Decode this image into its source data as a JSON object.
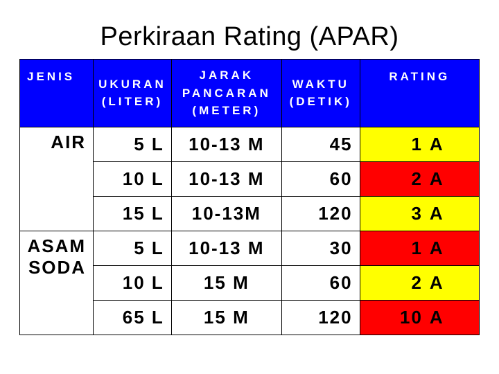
{
  "title": "Perkiraan Rating (APAR)",
  "headers": {
    "jenis": "JENIS",
    "ukuran": "UKURAN (LITER)",
    "jarak": "JARAK PANCARAN (METER)",
    "waktu": "WAKTU (DETIK)",
    "rating": "RATING"
  },
  "rows": [
    {
      "jenis": "AIR",
      "jenis_rowspan": 3,
      "ukuran": "5 L",
      "jarak": "10-13 M",
      "waktu": "45",
      "rating_num": "1",
      "rating_let": "A",
      "rating_bg": "bg-yellow"
    },
    {
      "jenis": "",
      "jenis_rowspan": 0,
      "ukuran": "10 L",
      "jarak": "10-13 M",
      "waktu": "60",
      "rating_num": "2",
      "rating_let": "A",
      "rating_bg": "bg-red"
    },
    {
      "jenis": "",
      "jenis_rowspan": 0,
      "ukuran": "15 L",
      "jarak": "10-13M",
      "waktu": "120",
      "rating_num": "3",
      "rating_let": "A",
      "rating_bg": "bg-yellow"
    },
    {
      "jenis": "ASAM SODA",
      "jenis_rowspan": 3,
      "ukuran": "5 L",
      "jarak": "10-13 M",
      "waktu": "30",
      "rating_num": "1",
      "rating_let": "A",
      "rating_bg": "bg-red"
    },
    {
      "jenis": "",
      "jenis_rowspan": 0,
      "ukuran": "10 L",
      "jarak": "15 M",
      "waktu": "60",
      "rating_num": "2",
      "rating_let": "A",
      "rating_bg": "bg-yellow"
    },
    {
      "jenis": "",
      "jenis_rowspan": 0,
      "ukuran": "65 L",
      "jarak": "15 M",
      "waktu": "120",
      "rating_num": "10",
      "rating_let": "A",
      "rating_bg": "bg-red"
    }
  ],
  "styling": {
    "header_bg": "#0000ff",
    "header_fg": "#ffffff",
    "yellow": "#ffff00",
    "red": "#ff0000",
    "border": "#000000",
    "title_fontsize": 38,
    "cell_fontsize": 26,
    "header_fontsize": 17
  }
}
